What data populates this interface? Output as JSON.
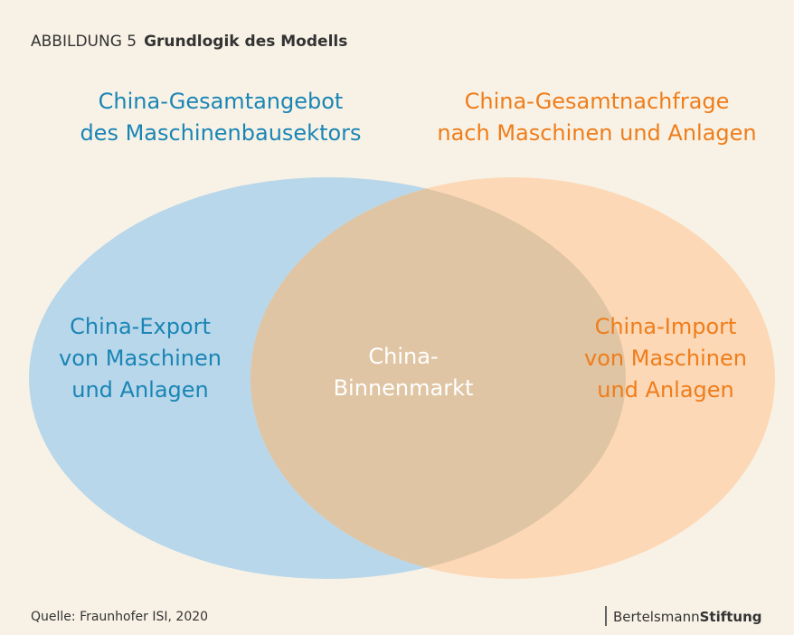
{
  "header": {
    "label": "ABBILDUNG 5",
    "title": "Grundlogik des Modells"
  },
  "left_set": {
    "title": [
      "China-Gesamtangebot",
      "des Maschinenbausektors"
    ],
    "label": [
      "China-Export",
      "von Maschinen",
      "und Anlagen"
    ]
  },
  "right_set": {
    "title": [
      "China-Gesamtnachfrage",
      "nach Maschinen und Anlagen"
    ],
    "label": [
      "China-Import",
      "von Maschinen",
      "und Anlagen"
    ]
  },
  "intersection": {
    "label": [
      "China-",
      "Binnenmarkt"
    ]
  },
  "footer": {
    "source": "Quelle: Fraunhofer ISI, 2020",
    "brand_light": "Bertelsmann",
    "brand_bold": "Stiftung"
  }
}
